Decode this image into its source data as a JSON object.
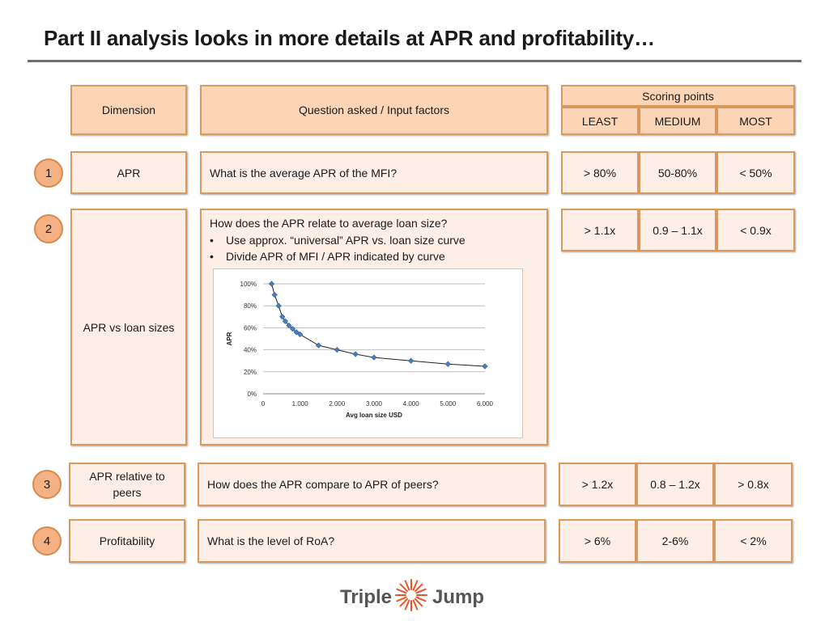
{
  "title": "Part II analysis looks in more details at APR and profitability…",
  "header": {
    "dimension": "Dimension",
    "question": "Question asked / Input factors",
    "scoring": "Scoring points",
    "least": "LEAST",
    "medium": "MEDIUM",
    "most": "MOST"
  },
  "rows": [
    {
      "number": "1",
      "dimension": "APR",
      "question": "What is the average APR of the MFI?",
      "least": "> 80%",
      "medium": "50-80%",
      "most": "< 50%"
    },
    {
      "number": "2",
      "dimension": "APR vs loan sizes",
      "question": "How does the APR relate to average loan size?",
      "bullets": [
        "Use  approx. “universal” APR vs. loan size curve",
        "Divide APR of MFI / APR indicated by curve"
      ],
      "least": "> 1.1x",
      "medium": "0.9 – 1.1x",
      "most": "< 0.9x"
    },
    {
      "number": "3",
      "dimension_line1": "APR relative to",
      "dimension_line2": "peers",
      "question": "How does the APR compare to APR of peers?",
      "least": "> 1.2x",
      "medium": "0.8 – 1.2x",
      "most": "> 0.8x"
    },
    {
      "number": "4",
      "dimension": "Profitability",
      "question": "What is the level of RoA?",
      "least": "> 6%",
      "medium": "2-6%",
      "most": "< 2%"
    }
  ],
  "chart_data": {
    "type": "scatter",
    "xlabel": "Avg loan size USD",
    "ylabel": "APR",
    "xlim": [
      0,
      6000
    ],
    "ylim": [
      0,
      100
    ],
    "x_ticks": [
      "0",
      "1.000",
      "2.000",
      "3.000",
      "4.000",
      "5.000",
      "6.000"
    ],
    "y_ticks": [
      "0%",
      "20%",
      "40%",
      "60%",
      "80%",
      "100%"
    ],
    "grid": "horizontal",
    "trendline": true,
    "points": [
      {
        "x": 230,
        "y": 100
      },
      {
        "x": 310,
        "y": 90
      },
      {
        "x": 420,
        "y": 80
      },
      {
        "x": 520,
        "y": 70
      },
      {
        "x": 600,
        "y": 66
      },
      {
        "x": 700,
        "y": 62
      },
      {
        "x": 800,
        "y": 59
      },
      {
        "x": 900,
        "y": 56
      },
      {
        "x": 1000,
        "y": 54
      },
      {
        "x": 1500,
        "y": 44
      },
      {
        "x": 2000,
        "y": 40
      },
      {
        "x": 2500,
        "y": 36
      },
      {
        "x": 3000,
        "y": 33
      },
      {
        "x": 4000,
        "y": 30
      },
      {
        "x": 5000,
        "y": 27
      },
      {
        "x": 6000,
        "y": 25
      }
    ]
  },
  "logo": {
    "left_word": "Triple",
    "right_word": "Jump",
    "accent": "#e8542a",
    "text_color": "#555555"
  }
}
